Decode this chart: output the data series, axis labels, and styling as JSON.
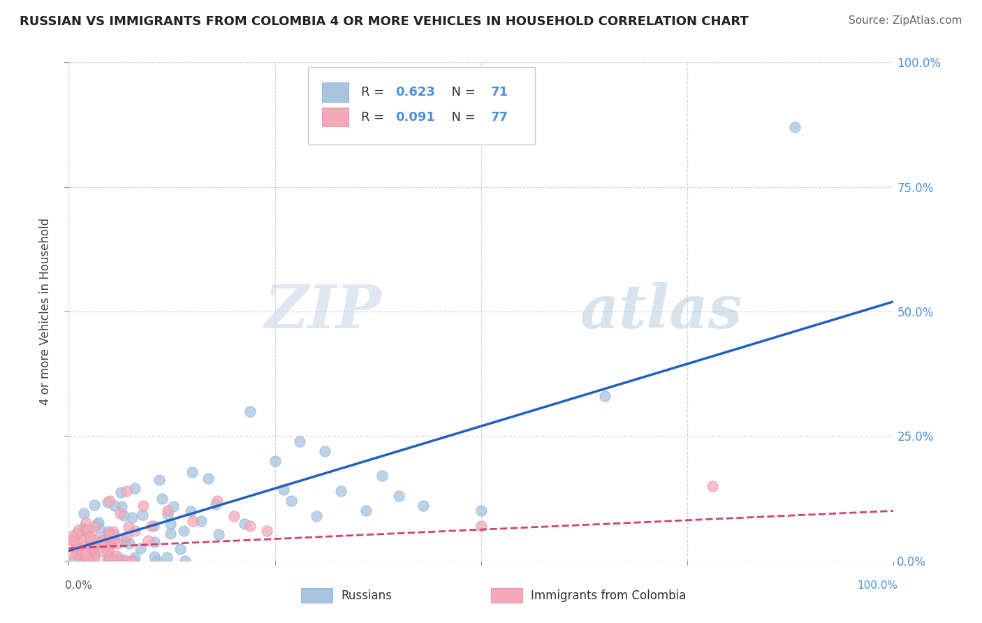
{
  "title": "RUSSIAN VS IMMIGRANTS FROM COLOMBIA 4 OR MORE VEHICLES IN HOUSEHOLD CORRELATION CHART",
  "source": "Source: ZipAtlas.com",
  "ylabel": "4 or more Vehicles in Household",
  "ytick_values": [
    0.0,
    0.25,
    0.5,
    0.75,
    1.0
  ],
  "xlim": [
    0.0,
    1.0
  ],
  "ylim": [
    0.0,
    1.0
  ],
  "russian_R": 0.623,
  "russian_N": 71,
  "colombia_R": 0.091,
  "colombia_N": 77,
  "russian_color": "#a8c4e0",
  "colombia_color": "#f4a9b8",
  "russian_line_color": "#2060c0",
  "colombia_line_color": "#d04070",
  "watermark_zip": "ZIP",
  "watermark_atlas": "atlas",
  "legend_label_russian": "Russians",
  "legend_label_colombia": "Immigrants from Colombia",
  "background_color": "#ffffff",
  "grid_color": "#cccccc",
  "right_tick_color": "#4a90d9",
  "russian_line_intercept": 0.02,
  "russian_line_slope": 0.5,
  "colombia_line_intercept": 0.025,
  "colombia_line_slope": 0.075
}
